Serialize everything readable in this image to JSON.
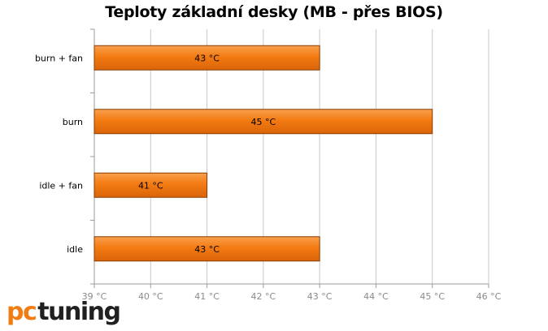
{
  "title": "Teploty základní desky (MB - přes BIOS)",
  "logo": {
    "part1": "pc",
    "part2": "tuning"
  },
  "colors": {
    "bar_fill": "#f47b12",
    "bar_stroke": "#8a3c00",
    "grid": "#c8c8c8",
    "tick_text": "#8a8a8a"
  },
  "chart_data": {
    "type": "bar",
    "orientation": "horizontal",
    "title": "Teploty základní desky (MB - přes BIOS)",
    "categories": [
      "burn + fan",
      "burn",
      "idle + fan",
      "idle"
    ],
    "values": [
      43,
      45,
      41,
      43
    ],
    "data_labels": [
      "43 °C",
      "45 °C",
      "41 °C",
      "43 °C"
    ],
    "xlim": [
      39,
      46
    ],
    "x_ticks": [
      39,
      40,
      41,
      42,
      43,
      44,
      45,
      46
    ],
    "x_tick_labels": [
      "39 °C",
      "40 °C",
      "41 °C",
      "42 °C",
      "43 °C",
      "44 °C",
      "45 °C",
      "46 °C"
    ],
    "grid": true,
    "legend": "none"
  }
}
